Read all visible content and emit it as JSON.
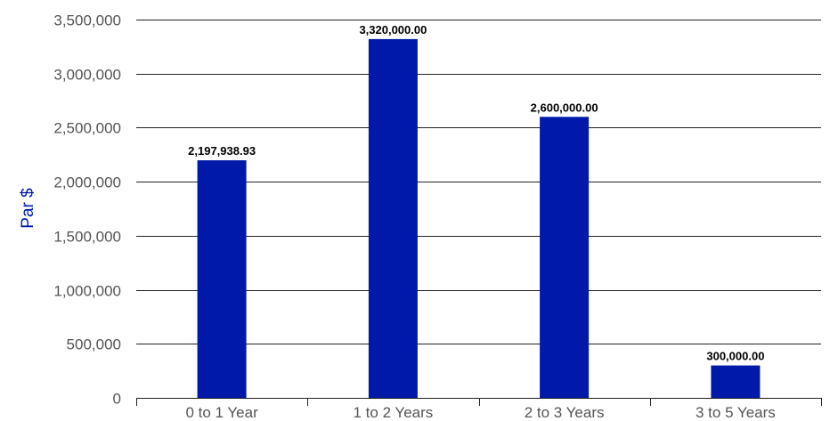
{
  "chart_data": {
    "type": "bar",
    "categories": [
      "0 to 1 Year",
      "1 to 2 Years",
      "2 to 3 Years",
      "3 to 5 Years"
    ],
    "values": [
      2197938.93,
      3320000.0,
      2600000.0,
      300000.0
    ],
    "data_labels": [
      "2,197,938.93",
      "3,320,000.00",
      "2,600,000.00",
      "300,000.00"
    ],
    "ylabel": "Par $",
    "xlabel": "",
    "ylim": [
      0,
      3500000
    ],
    "yticks": [
      0,
      500000,
      1000000,
      1500000,
      2000000,
      2500000,
      3000000,
      3500000
    ],
    "ytick_labels": [
      "0",
      "500,000",
      "1,000,000",
      "1,500,000",
      "2,000,000",
      "2,500,000",
      "3,000,000",
      "3,500,000"
    ],
    "grid": true,
    "legend": "none",
    "colors": {
      "bar": "#0019a8",
      "ylabel": "#0019a8",
      "gridline": "#222222",
      "tick_text": "#555555",
      "data_label_text": "#000000"
    }
  }
}
